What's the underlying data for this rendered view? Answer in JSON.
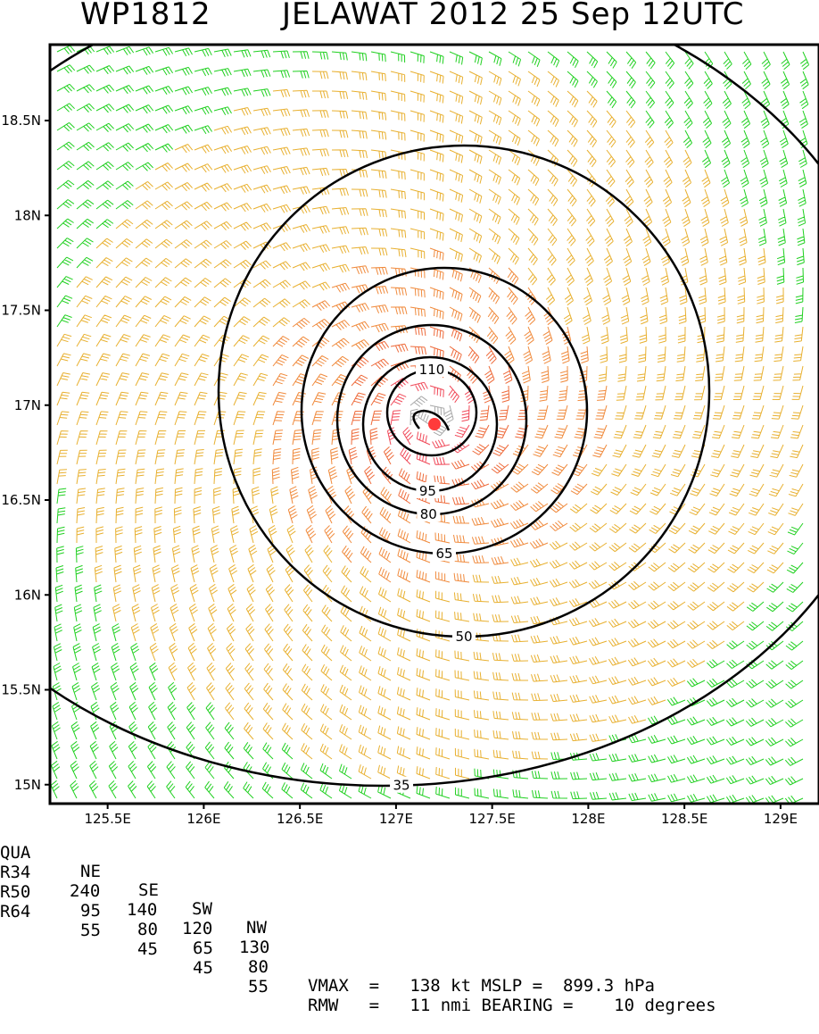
{
  "title": {
    "storm_id": "WP1812",
    "storm_name_time": "JELAWAT 2012 25 Sep 12UTC"
  },
  "map": {
    "type": "wind-barb contour map",
    "lon_range": [
      125.2,
      129.2
    ],
    "lat_range": [
      14.9,
      18.9
    ],
    "lon_ticks": [
      "125.5E",
      "126E",
      "126.5E",
      "127E",
      "127.5E",
      "128E",
      "128.5E",
      "129E"
    ],
    "lat_ticks": [
      "15N",
      "15.5N",
      "16N",
      "16.5N",
      "17N",
      "17.5N",
      "18N",
      "18.5N"
    ],
    "center_marker": {
      "lon": 127.2,
      "lat": 16.9,
      "color": "#ff3b3b"
    },
    "contours": [
      {
        "level": "35",
        "label": "35"
      },
      {
        "level": "50",
        "label": "50"
      },
      {
        "level": "65",
        "label": "65"
      },
      {
        "level": "80",
        "label": "80"
      },
      {
        "level": "95",
        "label": "95"
      },
      {
        "level": "110",
        "label": "110"
      }
    ],
    "barb_colors": {
      "below_35": "#20d020",
      "35_50": "#e8b030",
      "50_65": "#f08a3c",
      "65_80": "#ee6a3a",
      "80_95": "#f04858",
      "above_95": "#a8a8a8"
    }
  },
  "table": {
    "header": [
      "QUA",
      "NE",
      "SE",
      "SW",
      "NW"
    ],
    "rows": [
      {
        "label": "R34",
        "values": [
          "240",
          "140",
          "120",
          "130"
        ]
      },
      {
        "label": "R50",
        "values": [
          "95",
          "80",
          "65",
          "80"
        ]
      },
      {
        "label": "R64",
        "values": [
          "55",
          "45",
          "45",
          "55"
        ]
      }
    ],
    "vmax_line": "VMAX  =   138 kt MSLP =  899.3 hPa",
    "rmw_line": "RMW   =   11 nmi BEARING =    10 degrees"
  }
}
